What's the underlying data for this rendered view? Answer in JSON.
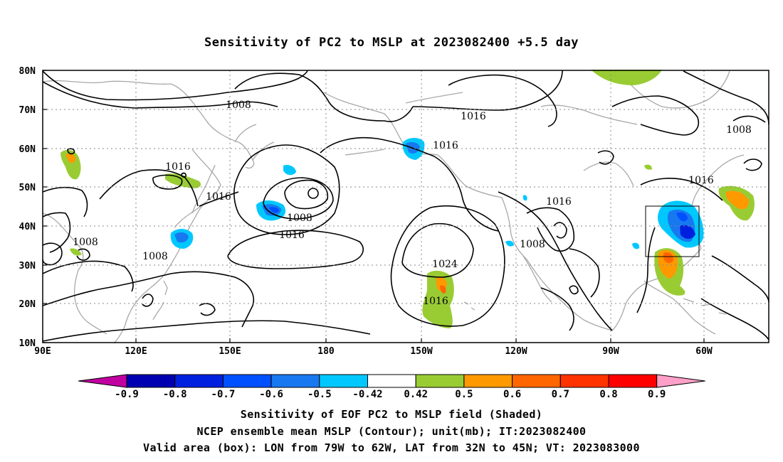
{
  "title": "Sensitivity of PC2 to MSLP at 2023082400 +5.5 day",
  "map": {
    "lat_labels": [
      "80N",
      "70N",
      "60N",
      "50N",
      "40N",
      "30N",
      "20N",
      "10N"
    ],
    "lon_labels": [
      "90E",
      "120E",
      "150E",
      "180",
      "150W",
      "120W",
      "90W",
      "60W"
    ],
    "lon_range": [
      "90E",
      "50W"
    ],
    "lat_range": [
      "10N",
      "80N"
    ],
    "grid": "dotted",
    "contour_labels": [
      {
        "text": "1008",
        "position": "near 150E, 72N"
      },
      {
        "text": "1016",
        "position": "near 145W, 70N"
      },
      {
        "text": "1008",
        "position": "near 55W, 65N"
      },
      {
        "text": "1016",
        "position": "near 150W, 60N"
      },
      {
        "text": "1016",
        "position": "near 133E, 54N"
      },
      {
        "text": "1016",
        "position": "near 143E, 48N"
      },
      {
        "text": "1016",
        "position": "near 65W, 51N"
      },
      {
        "text": "1016",
        "position": "near 113W, 46N"
      },
      {
        "text": "1008",
        "position": "near 167E, 42N"
      },
      {
        "text": "1016",
        "position": "near 175E, 37N"
      },
      {
        "text": "1008",
        "position": "near 97E, 35N"
      },
      {
        "text": "1008",
        "position": "near 120E, 31N"
      },
      {
        "text": "1008",
        "position": "near 117W, 34N"
      },
      {
        "text": "1024",
        "position": "near 145W, 30N"
      },
      {
        "text": "1016",
        "position": "near 147W, 22N"
      }
    ],
    "valid_box": {
      "lon_from": "79W",
      "lon_to": "62W",
      "lat_from": "32N",
      "lat_to": "45N"
    }
  },
  "colorbar": {
    "labels": [
      "-0.9",
      "-0.8",
      "-0.7",
      "-0.6",
      "-0.5",
      "-0.42",
      "0.42",
      "0.5",
      "0.6",
      "0.7",
      "0.8",
      "0.9"
    ],
    "colors": [
      "#c000a0",
      "#0000b0",
      "#0020e0",
      "#0050ff",
      "#1878f0",
      "#2aa8f8",
      "#00c8ff",
      "#ffffff",
      "#99cc33",
      "#ff9900",
      "#ff6600",
      "#ff3300",
      "#ff0000",
      "#ffa0c8"
    ]
  },
  "captions": {
    "line1": "Sensitivity of EOF PC2 to MSLP field (Shaded)",
    "line2": "NCEP ensemble mean MSLP (Contour); unit(mb); IT:2023082400",
    "line3": "Valid area (box): LON from 79W to 62W, LAT from 32N to 45N; VT: 2023083000"
  }
}
